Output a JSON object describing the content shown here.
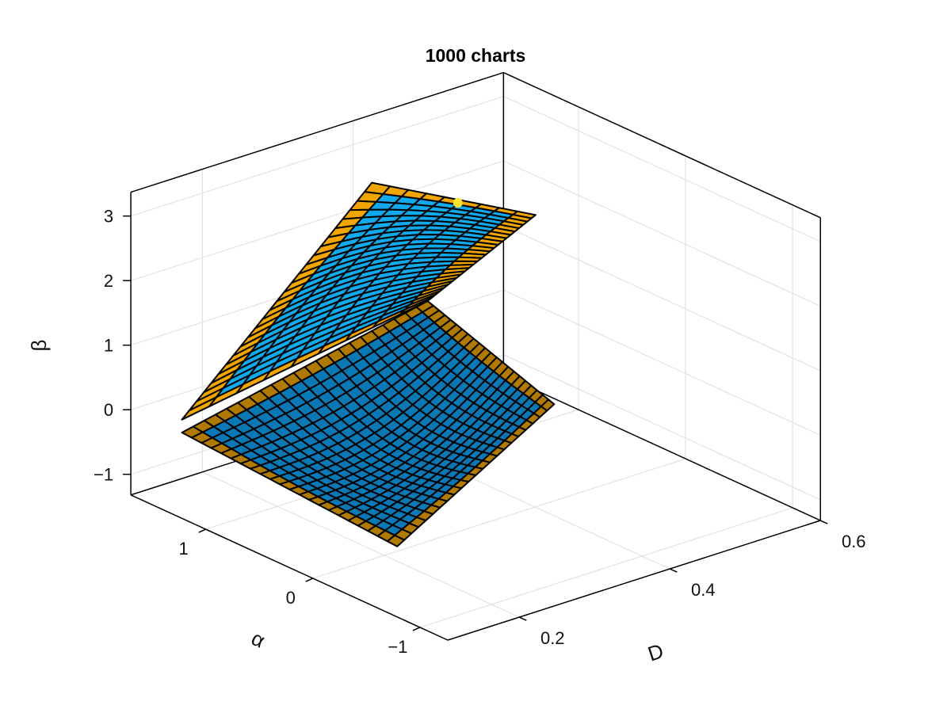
{
  "chart_data": {
    "type": "surface",
    "title": "1000 charts",
    "xlabel": "D",
    "ylabel": "α",
    "zlabel": "β",
    "xlim": [
      0.105,
      0.6
    ],
    "ylim": [
      -1.26,
      1.7
    ],
    "zlim": [
      -1.32,
      3.37
    ],
    "x_ticks": [
      {
        "v": 0.2,
        "label": "0.2"
      },
      {
        "v": 0.4,
        "label": "0.4"
      },
      {
        "v": 0.6,
        "label": "0.6"
      }
    ],
    "y_ticks": [
      {
        "v": 1,
        "label": "1"
      },
      {
        "v": 0,
        "label": "0"
      },
      {
        "v": -1,
        "label": "−1"
      }
    ],
    "z_ticks": [
      {
        "v": 3,
        "label": "3"
      },
      {
        "v": 2,
        "label": "2"
      },
      {
        "v": 1,
        "label": "1"
      },
      {
        "v": 0,
        "label": "0"
      },
      {
        "v": -1,
        "label": "−1"
      }
    ],
    "grid": true,
    "surface_patches": [
      {
        "name": "lower-sheet",
        "corners": [
          [
            0.106,
            1.23,
            0.0
          ],
          [
            0.19,
            -0.19,
            -1.0
          ],
          [
            0.39,
            -0.25,
            0.5
          ],
          [
            0.357,
            0.7,
            1.5
          ]
        ],
        "fill": "#0b78b6",
        "edge_fill": "#b07a00"
      },
      {
        "name": "upper-fold",
        "corners": [
          [
            0.106,
            1.23,
            0.2
          ],
          [
            0.357,
            0.7,
            1.5
          ],
          [
            0.445,
            0.31,
            2.8
          ],
          [
            0.317,
            0.94,
            3.3
          ]
        ],
        "fill": "#12a8ec",
        "edge_fill": "#f0a500"
      }
    ],
    "highlight_point": {
      "D": 0.383,
      "alpha": 0.6,
      "beta": 3.0,
      "color": "#ffe22e"
    },
    "colors": {
      "grid": "#e2e2e2",
      "frame": "#000000"
    }
  }
}
